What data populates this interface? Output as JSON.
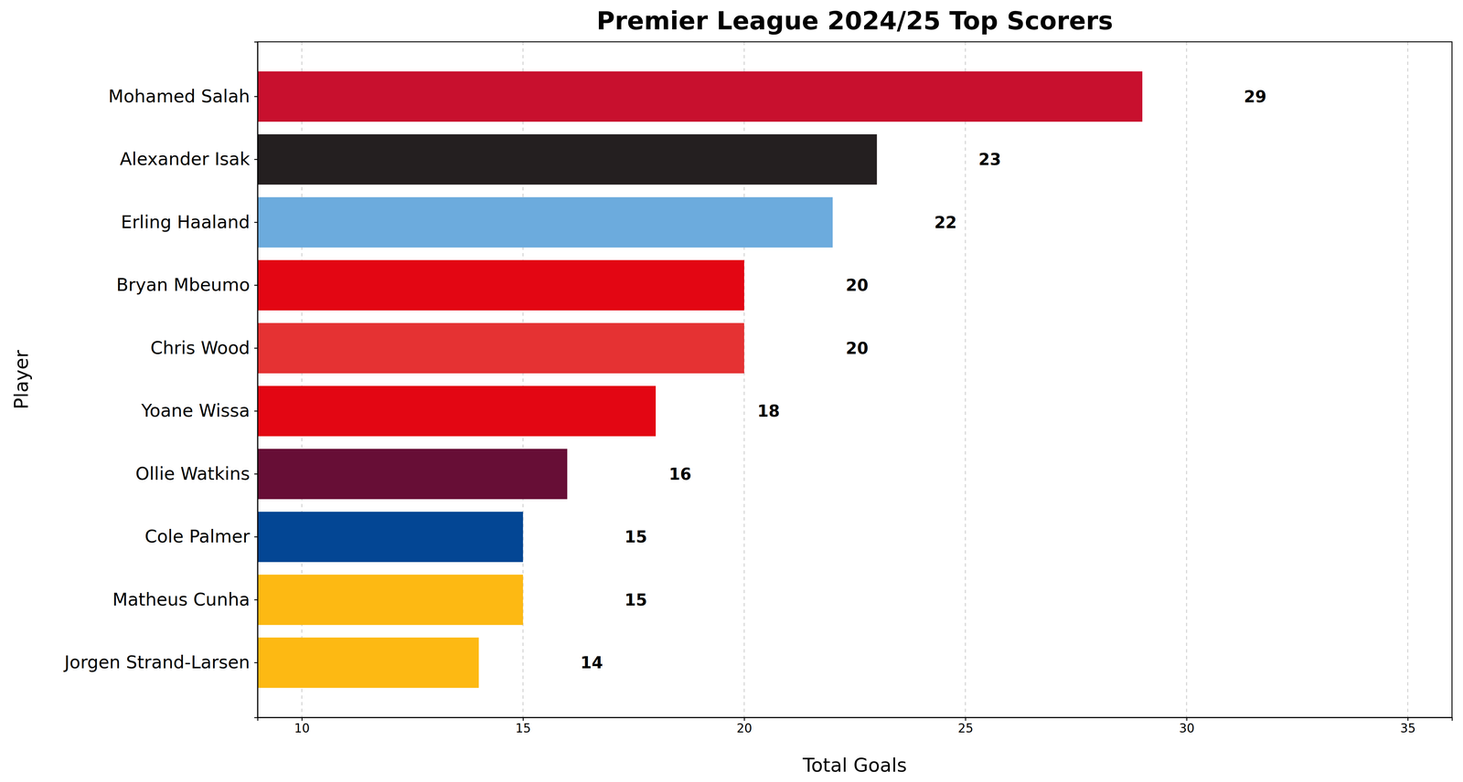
{
  "chart_data": {
    "type": "bar",
    "orientation": "horizontal",
    "title": "Premier League 2024/25 Top Scorers",
    "x_label": "Total Goals",
    "y_label": "Player",
    "categories": [
      "Mohamed Salah",
      "Alexander Isak",
      "Erling Haaland",
      "Bryan Mbeumo",
      "Chris Wood",
      "Yoane Wissa",
      "Ollie Watkins",
      "Cole Palmer",
      "Matheus Cunha",
      "Jorgen Strand-Larsen"
    ],
    "values": [
      29,
      23,
      22,
      20,
      20,
      18,
      16,
      15,
      15,
      14
    ],
    "colors": [
      "#c8102e",
      "#241f20",
      "#6cabdd",
      "#e30613",
      "#e53233",
      "#e30613",
      "#670e36",
      "#034694",
      "#fdb913",
      "#fdb913"
    ],
    "xlim": [
      9,
      36
    ],
    "xticks": [
      10,
      15,
      20,
      25,
      30,
      35
    ],
    "grid": true,
    "data_labels": true
  }
}
